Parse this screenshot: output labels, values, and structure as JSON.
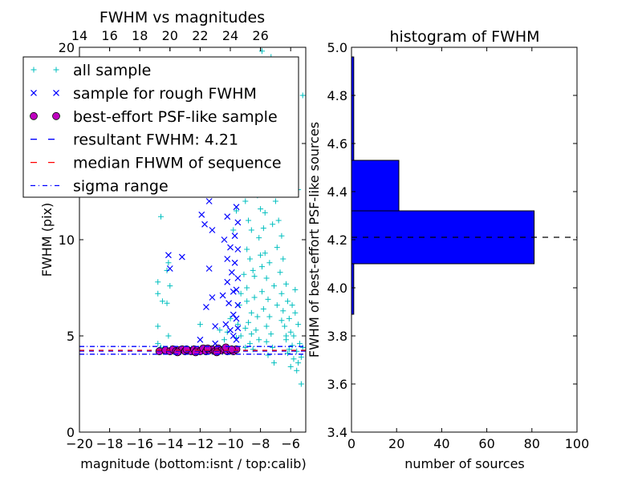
{
  "chart_data": [
    {
      "id": "left",
      "type": "scatter",
      "title": "FWHM vs magnitudes",
      "xlabel": "magnitude (bottom:isnt / top:calib)",
      "ylabel": "FWHM (pix)",
      "xlim": [
        -20,
        -5
      ],
      "ylim": [
        0,
        20
      ],
      "x_ticks": [
        -20,
        -18,
        -16,
        -14,
        -12,
        -10,
        -8,
        -6
      ],
      "x_tick_labels": [
        "−20",
        "−18",
        "−16",
        "−14",
        "−12",
        "−10",
        "−8",
        "−6"
      ],
      "y_ticks": [
        0,
        5,
        10,
        15,
        20
      ],
      "y_tick_labels": [
        "0",
        "5",
        "10",
        "15",
        "20"
      ],
      "top_axis": {
        "ticks": [
          14,
          16,
          18,
          20,
          22,
          24,
          26
        ],
        "tick_labels": [
          "14",
          "16",
          "18",
          "20",
          "22",
          "24",
          "26"
        ],
        "offset": 34
      },
      "grid": false,
      "legend_position": "upper-left",
      "legend": [
        {
          "label": "all sample",
          "marker": "plus",
          "color": "#00bfbf"
        },
        {
          "label": "sample for rough FWHM",
          "marker": "x",
          "color": "#0000ff"
        },
        {
          "label": "best-effort PSF-like sample",
          "marker": "circle",
          "color": "#bf00bf"
        },
        {
          "label": "resultant FWHM: 4.21",
          "marker": "dash",
          "color": "#0000ff"
        },
        {
          "label": "median FHWM of sequence",
          "marker": "dash",
          "color": "#ff0000"
        },
        {
          "label": "sigma range",
          "marker": "dashdot",
          "color": "#0000ff"
        }
      ],
      "hlines": [
        {
          "y": 4.21,
          "style": "dash",
          "color": "#0000ff"
        },
        {
          "y": 4.25,
          "style": "dash",
          "color": "#ff0000"
        },
        {
          "y": 4.45,
          "style": "dashdot",
          "color": "#0000ff"
        },
        {
          "y": 4.05,
          "style": "dashdot",
          "color": "#0000ff"
        }
      ],
      "series": [
        {
          "name": "all sample",
          "marker": "plus",
          "color": "#00bfbf",
          "points": [
            [
              -14.8,
              7.8
            ],
            [
              -14.8,
              7.2
            ],
            [
              -14.6,
              11.2
            ],
            [
              -14.8,
              4.6
            ],
            [
              -14.6,
              4.4
            ],
            [
              -14.8,
              5.5
            ],
            [
              -14.5,
              6.8
            ],
            [
              -14.2,
              6.7
            ],
            [
              -14.2,
              8.4
            ],
            [
              -14.1,
              5.0
            ],
            [
              -14.0,
              7.6
            ],
            [
              -14.1,
              8.8
            ],
            [
              -12.0,
              5.6
            ],
            [
              -10.7,
              5.3
            ],
            [
              -10.4,
              4.8
            ],
            [
              -10.2,
              5.2
            ],
            [
              -10.0,
              5.9
            ],
            [
              -9.6,
              14.0
            ],
            [
              -9.4,
              12.5
            ],
            [
              -9.6,
              11.5
            ],
            [
              -9.8,
              10.5
            ],
            [
              -9.4,
              6.6
            ],
            [
              -9.5,
              5.6
            ],
            [
              -9.3,
              5.0
            ],
            [
              -9.0,
              4.4
            ],
            [
              -9.6,
              4.9
            ],
            [
              -9.2,
              13.0
            ],
            [
              -9.0,
              12.0
            ],
            [
              -8.8,
              11.0
            ],
            [
              -8.6,
              10.5
            ],
            [
              -8.9,
              9.5
            ],
            [
              -8.7,
              9.0
            ],
            [
              -8.5,
              8.4
            ],
            [
              -8.9,
              7.5
            ],
            [
              -8.4,
              7.0
            ],
            [
              -8.6,
              6.2
            ],
            [
              -8.8,
              5.7
            ],
            [
              -8.3,
              5.3
            ],
            [
              -8.1,
              4.8
            ],
            [
              -8.5,
              4.3
            ],
            [
              -8.2,
              12.3
            ],
            [
              -8.0,
              11.6
            ],
            [
              -7.8,
              10.6
            ],
            [
              -8.1,
              10.1
            ],
            [
              -7.7,
              9.3
            ],
            [
              -7.9,
              8.6
            ],
            [
              -7.6,
              8.0
            ],
            [
              -7.9,
              7.3
            ],
            [
              -7.5,
              6.9
            ],
            [
              -7.8,
              6.4
            ],
            [
              -7.4,
              6.0
            ],
            [
              -7.6,
              5.5
            ],
            [
              -7.3,
              5.1
            ],
            [
              -7.6,
              4.7
            ],
            [
              -7.2,
              4.4
            ],
            [
              -7.5,
              4.0
            ],
            [
              -7.1,
              3.6
            ],
            [
              -7.9,
              19.8
            ],
            [
              -7.3,
              19.5
            ],
            [
              -7.6,
              18.3
            ],
            [
              -8.0,
              17.4
            ],
            [
              -7.0,
              16.8
            ],
            [
              -8.3,
              16.2
            ],
            [
              -7.5,
              15.5
            ],
            [
              -6.8,
              15.0
            ],
            [
              -8.6,
              14.6
            ],
            [
              -7.8,
              14.2
            ],
            [
              -7.2,
              13.6
            ],
            [
              -8.8,
              13.2
            ],
            [
              -6.6,
              12.8
            ],
            [
              -5.5,
              12.6
            ],
            [
              -5.2,
              17.5
            ],
            [
              -7.0,
              12.0
            ],
            [
              -6.8,
              11.0
            ],
            [
              -6.6,
              10.2
            ],
            [
              -6.9,
              9.6
            ],
            [
              -6.5,
              9.0
            ],
            [
              -6.7,
              8.3
            ],
            [
              -6.3,
              7.7
            ],
            [
              -6.6,
              7.2
            ],
            [
              -6.2,
              6.8
            ],
            [
              -6.5,
              6.3
            ],
            [
              -6.1,
              5.9
            ],
            [
              -6.4,
              5.5
            ],
            [
              -6.0,
              5.2
            ],
            [
              -6.3,
              4.8
            ],
            [
              -5.9,
              4.5
            ],
            [
              -6.2,
              4.1
            ],
            [
              -5.8,
              3.8
            ],
            [
              -6.0,
              3.4
            ],
            [
              -5.6,
              3.2
            ],
            [
              -5.3,
              2.5
            ],
            [
              -5.7,
              6.2
            ],
            [
              -5.5,
              5.6
            ],
            [
              -5.8,
              5.0
            ],
            [
              -5.4,
              4.6
            ],
            [
              -5.6,
              4.2
            ],
            [
              -5.3,
              3.9
            ],
            [
              -5.5,
              3.6
            ],
            [
              -5.2,
              4.4
            ],
            [
              -9.1,
              8.2
            ],
            [
              -8.9,
              6.8
            ],
            [
              -8.6,
              5.1
            ],
            [
              -8.2,
              6.0
            ],
            [
              -8.0,
              9.2
            ],
            [
              -7.7,
              11.4
            ],
            [
              -7.4,
              8.8
            ],
            [
              -7.1,
              7.6
            ],
            [
              -6.9,
              6.6
            ],
            [
              -6.6,
              5.8
            ],
            [
              -6.3,
              5.0
            ],
            [
              -6.1,
              4.3
            ],
            [
              -5.9,
              6.6
            ],
            [
              -5.7,
              7.4
            ],
            [
              -7.2,
              10.8
            ],
            [
              -8.4,
              12.6
            ],
            [
              -9.3,
              7.2
            ],
            [
              -9.0,
              5.4
            ],
            [
              -8.7,
              4.6
            ],
            [
              -8.4,
              8.1
            ]
          ]
        },
        {
          "name": "sample for rough FWHM",
          "marker": "x",
          "color": "#0000ff",
          "points": [
            [
              -14.1,
              9.2
            ],
            [
              -14.0,
              8.5
            ],
            [
              -13.2,
              9.1
            ],
            [
              -12.0,
              12.7
            ],
            [
              -11.9,
              11.3
            ],
            [
              -11.7,
              10.8
            ],
            [
              -11.4,
              12.0
            ],
            [
              -11.2,
              10.5
            ],
            [
              -11.4,
              8.5
            ],
            [
              -11.2,
              7.0
            ],
            [
              -11.6,
              6.5
            ],
            [
              -11.0,
              5.5
            ],
            [
              -12.0,
              4.8
            ],
            [
              -11.0,
              4.6
            ],
            [
              -10.7,
              13.7
            ],
            [
              -10.5,
              13.5
            ],
            [
              -10.4,
              12.5
            ],
            [
              -10.2,
              11.2
            ],
            [
              -10.4,
              10.0
            ],
            [
              -10.0,
              9.6
            ],
            [
              -10.2,
              9.0
            ],
            [
              -9.9,
              8.3
            ],
            [
              -10.2,
              7.8
            ],
            [
              -9.8,
              7.3
            ],
            [
              -10.1,
              6.7
            ],
            [
              -9.8,
              6.1
            ],
            [
              -10.3,
              5.6
            ],
            [
              -9.8,
              5.0
            ],
            [
              -9.7,
              12.4
            ],
            [
              -9.6,
              11.7
            ],
            [
              -9.5,
              10.9
            ],
            [
              -9.7,
              10.2
            ],
            [
              -9.5,
              9.5
            ],
            [
              -9.7,
              8.8
            ],
            [
              -9.5,
              8.0
            ],
            [
              -9.6,
              7.4
            ],
            [
              -9.5,
              6.6
            ],
            [
              -9.6,
              5.9
            ],
            [
              -9.5,
              5.4
            ],
            [
              -9.6,
              4.8
            ],
            [
              -10.5,
              7.1
            ],
            [
              -10.0,
              5.3
            ]
          ]
        },
        {
          "name": "best-effort PSF-like sample",
          "marker": "circle",
          "color": "#bf00bf",
          "points": [
            [
              -14.7,
              4.2
            ],
            [
              -14.3,
              4.25
            ],
            [
              -14.0,
              4.2
            ],
            [
              -13.8,
              4.3
            ],
            [
              -13.6,
              4.2
            ],
            [
              -13.4,
              4.25
            ],
            [
              -13.2,
              4.3
            ],
            [
              -13.0,
              4.2
            ],
            [
              -12.8,
              4.25
            ],
            [
              -12.6,
              4.2
            ],
            [
              -12.4,
              4.3
            ],
            [
              -12.2,
              4.25
            ],
            [
              -12.0,
              4.2
            ],
            [
              -11.8,
              4.35
            ],
            [
              -11.6,
              4.2
            ],
            [
              -11.4,
              4.25
            ],
            [
              -11.2,
              4.3
            ],
            [
              -11.0,
              4.2
            ],
            [
              -10.8,
              4.35
            ],
            [
              -10.6,
              4.25
            ],
            [
              -10.4,
              4.3
            ],
            [
              -10.2,
              4.2
            ],
            [
              -10.0,
              4.25
            ],
            [
              -9.8,
              4.2
            ],
            [
              -9.6,
              4.3
            ],
            [
              -13.5,
              4.15
            ],
            [
              -12.9,
              4.3
            ],
            [
              -12.3,
              4.15
            ],
            [
              -11.5,
              4.35
            ],
            [
              -10.9,
              4.15
            ],
            [
              -10.3,
              4.4
            ],
            [
              -9.9,
              4.3
            ]
          ]
        }
      ]
    },
    {
      "id": "right",
      "type": "bar",
      "orientation": "horizontal",
      "title": "histogram of FWHM",
      "xlabel": "number of sources",
      "ylabel": "FWHM of best-effort PSF-like sources",
      "xlim": [
        0,
        100
      ],
      "ylim": [
        3.4,
        5.0
      ],
      "x_ticks": [
        0,
        20,
        40,
        60,
        80,
        100
      ],
      "x_tick_labels": [
        "0",
        "20",
        "40",
        "60",
        "80",
        "100"
      ],
      "y_ticks": [
        3.4,
        3.6,
        3.8,
        4.0,
        4.2,
        4.4,
        4.6,
        4.8,
        5.0
      ],
      "y_tick_labels": [
        "3.4",
        "3.6",
        "3.8",
        "4.0",
        "4.2",
        "4.4",
        "4.6",
        "4.8",
        "5.0"
      ],
      "bar_color": "#0000ff",
      "bins": [
        {
          "from": 3.89,
          "to": 4.1,
          "count": 1
        },
        {
          "from": 4.1,
          "to": 4.32,
          "count": 81
        },
        {
          "from": 4.32,
          "to": 4.53,
          "count": 21
        },
        {
          "from": 4.53,
          "to": 4.96,
          "count": 1
        }
      ],
      "reference_line": {
        "y": 4.21,
        "style": "dash",
        "color": "#000000"
      }
    }
  ]
}
